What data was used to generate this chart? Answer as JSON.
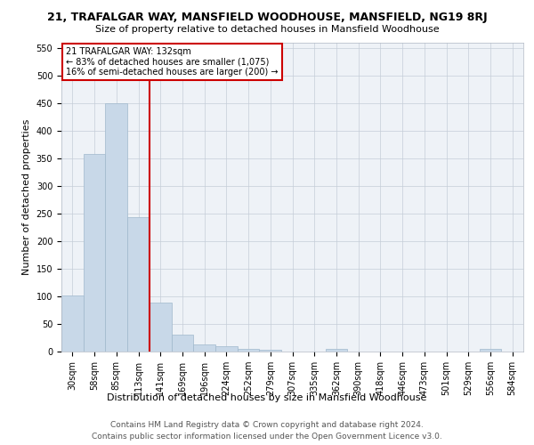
{
  "title": "21, TRAFALGAR WAY, MANSFIELD WOODHOUSE, MANSFIELD, NG19 8RJ",
  "subtitle": "Size of property relative to detached houses in Mansfield Woodhouse",
  "xlabel": "Distribution of detached houses by size in Mansfield Woodhouse",
  "ylabel": "Number of detached properties",
  "footer_line1": "Contains HM Land Registry data © Crown copyright and database right 2024.",
  "footer_line2": "Contains public sector information licensed under the Open Government Licence v3.0.",
  "annotation_line1": "21 TRAFALGAR WAY: 132sqm",
  "annotation_line2": "← 83% of detached houses are smaller (1,075)",
  "annotation_line3": "16% of semi-detached houses are larger (200) →",
  "bar_color": "#c8d8e8",
  "bar_edge_color": "#a0b8cc",
  "vline_color": "#cc0000",
  "categories": [
    "30sqm",
    "58sqm",
    "85sqm",
    "113sqm",
    "141sqm",
    "169sqm",
    "196sqm",
    "224sqm",
    "252sqm",
    "279sqm",
    "307sqm",
    "335sqm",
    "362sqm",
    "390sqm",
    "418sqm",
    "446sqm",
    "473sqm",
    "501sqm",
    "529sqm",
    "556sqm",
    "584sqm"
  ],
  "values": [
    101,
    357,
    449,
    243,
    88,
    30,
    13,
    9,
    5,
    4,
    0,
    0,
    5,
    0,
    0,
    0,
    0,
    0,
    0,
    5,
    0
  ],
  "ylim": [
    0,
    560
  ],
  "yticks": [
    0,
    50,
    100,
    150,
    200,
    250,
    300,
    350,
    400,
    450,
    500,
    550
  ],
  "bg_color": "#eef2f7",
  "grid_color": "#c5cdd8",
  "title_fontsize": 9,
  "subtitle_fontsize": 8,
  "xlabel_fontsize": 8,
  "ylabel_fontsize": 8,
  "tick_fontsize": 7,
  "annotation_fontsize": 7,
  "footer_fontsize": 6.5
}
